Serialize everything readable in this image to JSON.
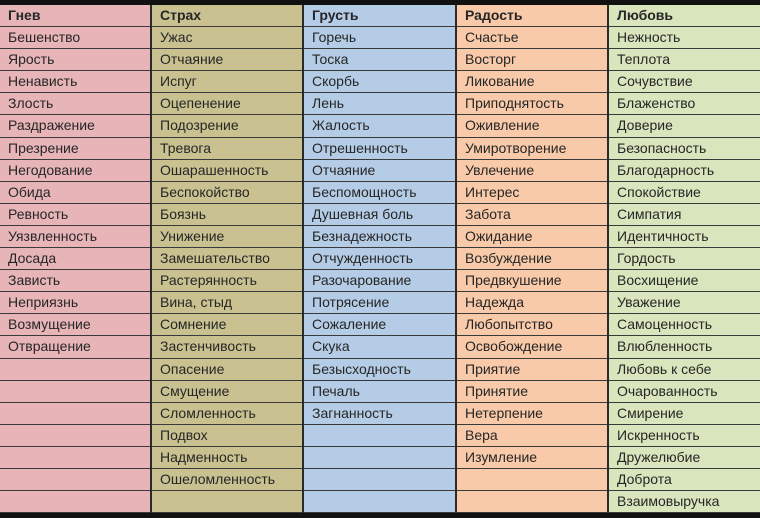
{
  "columns": [
    {
      "header": "Гнев",
      "color": "#e7b5b8",
      "items": [
        "Бешенство",
        "Ярость",
        "Ненависть",
        "Злость",
        "Раздражение",
        "Презрение",
        "Негодование",
        "Обида",
        "Ревность",
        "Уязвленность",
        "Досада",
        "Зависть",
        "Неприязнь",
        "Возмущение",
        "Отвращение"
      ]
    },
    {
      "header": "Страх",
      "color": "#c9c190",
      "items": [
        "Ужас",
        "Отчаяние",
        "Испуг",
        "Оцепенение",
        "Подозрение",
        "Тревога",
        "Ошарашенность",
        "Беспокойство",
        "Боязнь",
        "Унижение",
        "Замешательство",
        "Растерянность",
        "Вина, стыд",
        "Сомнение",
        "Застенчивость",
        "Опасение",
        "Смущение",
        "Сломленность",
        "Подвох",
        "Надменность",
        "Ошеломленность"
      ]
    },
    {
      "header": "Грусть",
      "color": "#b5cce6",
      "items": [
        "Горечь",
        "Тоска",
        "Скорбь",
        "Лень",
        "Жалость",
        "Отрешенность",
        "Отчаяние",
        "Беспомощность",
        "Душевная боль",
        "Безнадежность",
        "Отчужденность",
        "Разочарование",
        "Потрясение",
        "Сожаление",
        "Скука",
        "Безысходность",
        "Печаль",
        "Загнанность"
      ]
    },
    {
      "header": "Радость",
      "color": "#f9caa9",
      "items": [
        "Счастье",
        "Восторг",
        "Ликование",
        "Приподнятость",
        "Оживление",
        "Умиротворение",
        "Увлечение",
        "Интерес",
        "Забота",
        "Ожидание",
        "Возбуждение",
        "Предвкушение",
        "Надежда",
        "Любопытство",
        "Освобождение",
        "Приятие",
        "Принятие",
        "Нетерпение",
        "Вера",
        "Изумление"
      ]
    },
    {
      "header": "Любовь",
      "color": "#d9e5bd",
      "items": [
        "Нежность",
        "Теплота",
        "Сочувствие",
        "Блаженство",
        "Доверие",
        "Безопасность",
        "Благодарность",
        "Спокойствие",
        "Симпатия",
        "Идентичность",
        "Гордость",
        "Восхищение",
        "Уважение",
        "Самоценность",
        "Влюбленность",
        "Любовь к себе",
        "Очарованность",
        "Смирение",
        "Искренность",
        "Дружелюбие",
        "Доброта",
        "Взаимовыручка"
      ]
    }
  ]
}
